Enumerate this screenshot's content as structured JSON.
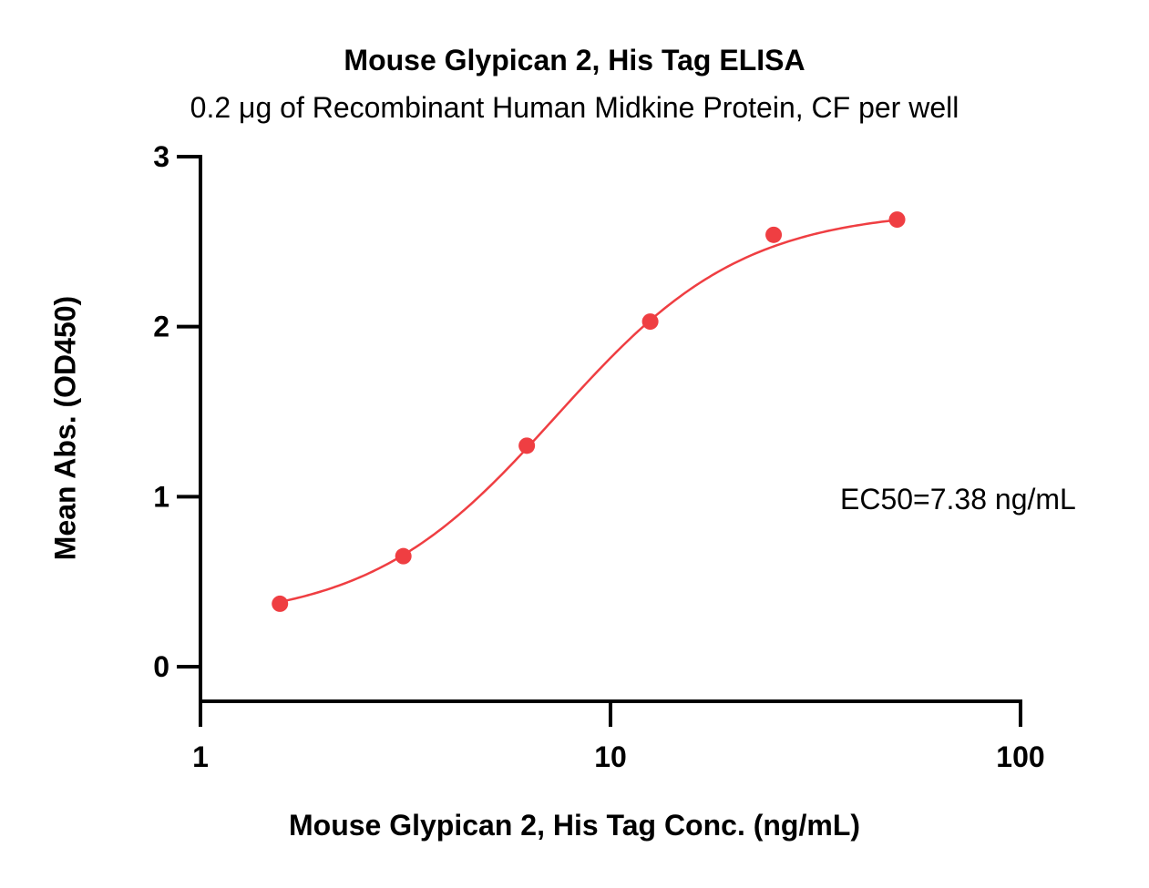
{
  "chart_data": {
    "type": "scatter",
    "title": "Mouse Glypican 2, His Tag ELISA",
    "subtitle": "0.2 μg of Recombinant Human Midkine Protein, CF per well",
    "xlabel": "Mouse Glypican 2, His Tag Conc. (ng/mL)",
    "ylabel": "Mean Abs. (OD450)",
    "x_scale": "log",
    "xlim": [
      1,
      100
    ],
    "ylim": [
      0,
      3
    ],
    "x_ticks": [
      "1",
      "10",
      "100"
    ],
    "y_ticks": [
      "0",
      "1",
      "2",
      "3"
    ],
    "grid": false,
    "series": [
      {
        "color": "#ef3e42",
        "x": [
          1.5625,
          3.125,
          6.25,
          12.5,
          25,
          50
        ],
        "y": [
          0.37,
          0.65,
          1.3,
          2.03,
          2.54,
          2.63
        ]
      }
    ],
    "fit": {
      "type": "4PL",
      "bottom": 0.26,
      "top": 2.69,
      "ec50": 7.38,
      "hill": 1.9
    },
    "annotation": "EC50=7.38 ng/mL"
  }
}
